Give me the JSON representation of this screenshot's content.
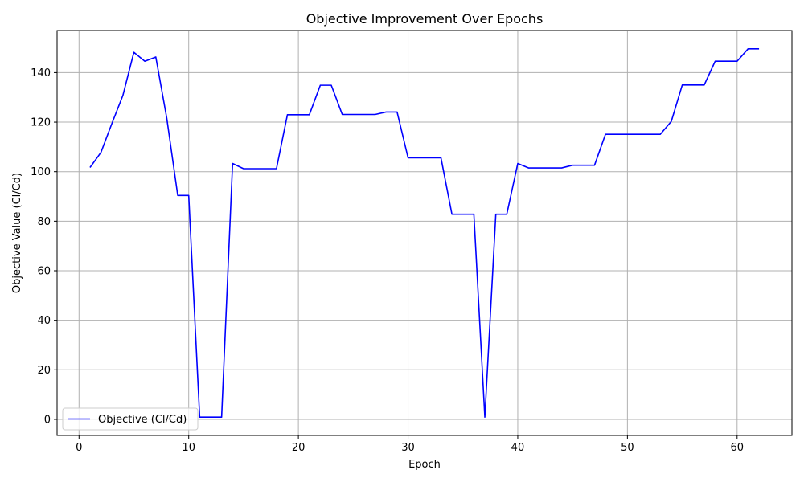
{
  "chart_data": {
    "type": "line",
    "title": "Objective Improvement Over Epochs",
    "xlabel": "Epoch",
    "ylabel": "Objective Value (Cl/Cd)",
    "xlim": [
      -2,
      65
    ],
    "ylim": [
      -6.5,
      157
    ],
    "xticks": [
      0,
      10,
      20,
      30,
      40,
      50,
      60
    ],
    "yticks": [
      0,
      20,
      40,
      60,
      80,
      100,
      120,
      140
    ],
    "grid": true,
    "legend_position": "lower-left",
    "series": [
      {
        "name": "Objective (Cl/Cd)",
        "color": "#0000ff",
        "x": [
          1,
          2,
          3,
          4,
          5,
          6,
          7,
          8,
          9,
          10,
          11,
          12,
          13,
          14,
          15,
          16,
          17,
          18,
          19,
          20,
          21,
          22,
          23,
          24,
          25,
          26,
          27,
          28,
          29,
          30,
          31,
          32,
          33,
          34,
          35,
          36,
          37,
          38,
          39,
          40,
          41,
          42,
          43,
          44,
          45,
          46,
          47,
          48,
          49,
          50,
          51,
          52,
          53,
          54,
          55,
          56,
          57,
          58,
          59,
          60,
          61,
          62
        ],
        "y": [
          101.7,
          107.8,
          119.5,
          130.8,
          148.2,
          144.6,
          146.3,
          121.6,
          90.4,
          90.4,
          0.9,
          0.9,
          0.9,
          103.3,
          101.2,
          101.2,
          101.2,
          101.2,
          123.0,
          123.0,
          123.0,
          134.9,
          134.9,
          123.1,
          123.1,
          123.1,
          123.1,
          124.1,
          124.1,
          105.6,
          105.6,
          105.6,
          105.6,
          82.8,
          82.8,
          82.8,
          0.9,
          82.8,
          82.8,
          103.3,
          101.5,
          101.5,
          101.5,
          101.5,
          102.6,
          102.6,
          102.6,
          115.1,
          115.1,
          115.1,
          115.1,
          115.1,
          115.1,
          120.3,
          135.0,
          135.0,
          135.0,
          144.6,
          144.6,
          144.6,
          149.6,
          149.6
        ]
      }
    ]
  }
}
